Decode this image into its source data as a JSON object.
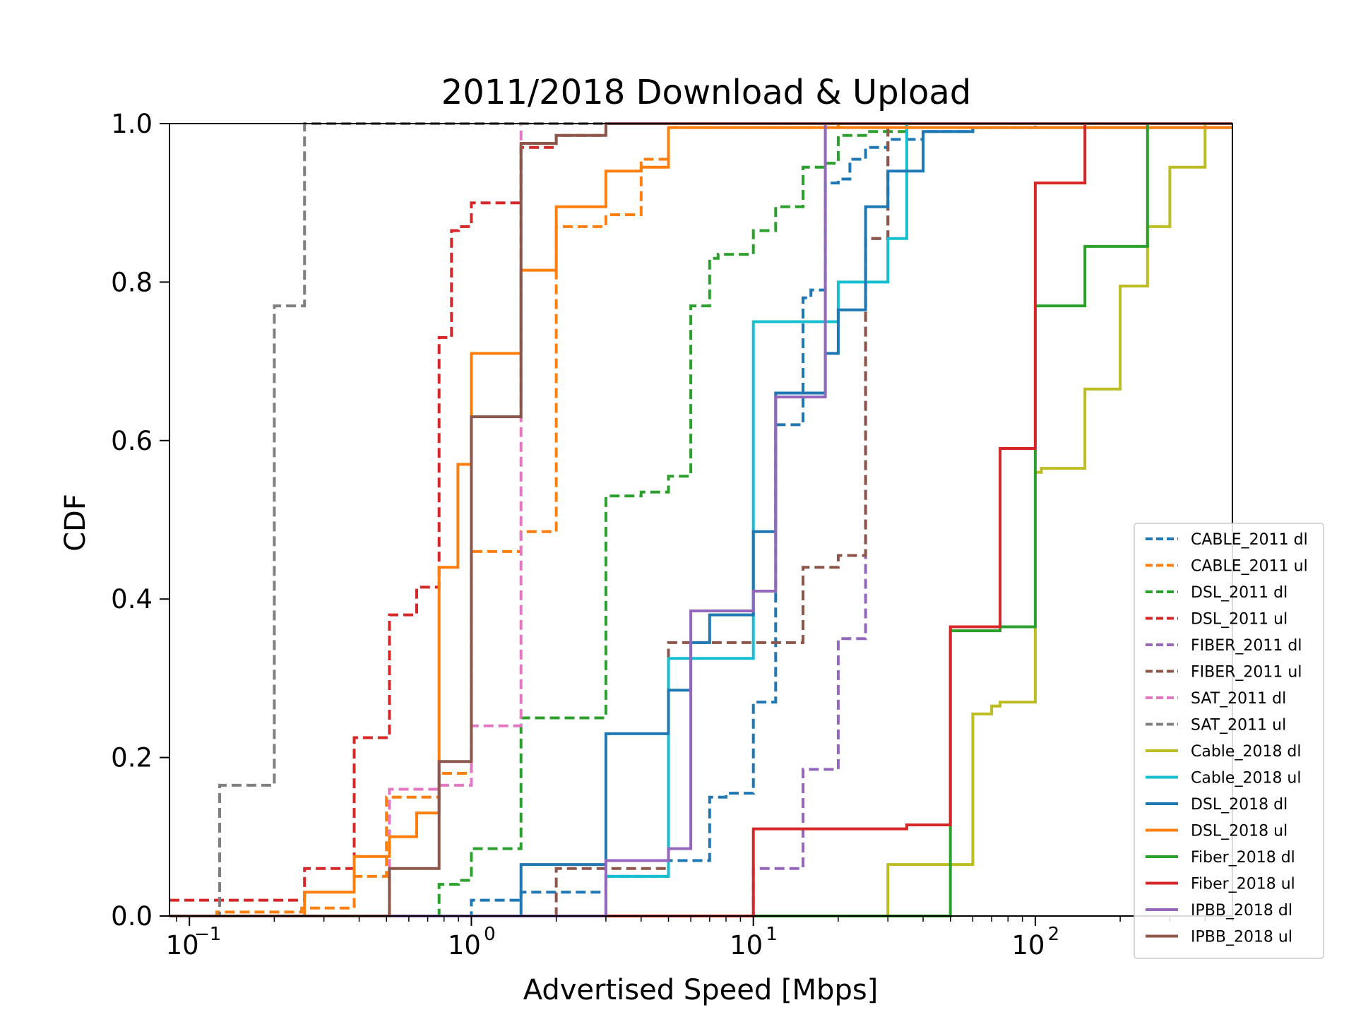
{
  "chart_data": {
    "type": "line",
    "title": "2011/2018 Download & Upload",
    "xlabel": "Advertised Speed [Mbps]",
    "ylabel": "CDF",
    "xscale": "log",
    "xlim": [
      0.085,
      500
    ],
    "ylim": [
      0,
      1
    ],
    "xticks": [
      {
        "value": 0.1,
        "base": "10",
        "exp": "−1"
      },
      {
        "value": 1,
        "base": "10",
        "exp": "0"
      },
      {
        "value": 10,
        "base": "10",
        "exp": "1"
      },
      {
        "value": 100,
        "base": "10",
        "exp": "2"
      }
    ],
    "yticks": [
      "0.0",
      "0.2",
      "0.4",
      "0.6",
      "0.8",
      "1.0"
    ],
    "grid": false,
    "legend_position": "lower-right",
    "series": [
      {
        "name": "CABLE_2011 dl",
        "color": "#1f77b4",
        "style": "dashed",
        "x": [
          0.085,
          1,
          1.5,
          3,
          5,
          7,
          8,
          10,
          12,
          15,
          16,
          18,
          20,
          22,
          25,
          30,
          40,
          60,
          100,
          500
        ],
        "y": [
          0,
          0.02,
          0.03,
          0.05,
          0.07,
          0.15,
          0.155,
          0.27,
          0.62,
          0.78,
          0.79,
          0.925,
          0.93,
          0.955,
          0.97,
          0.98,
          0.99,
          0.995,
          1.0,
          1.0
        ]
      },
      {
        "name": "CABLE_2011 ul",
        "color": "#ff7f0e",
        "style": "dashed",
        "x": [
          0.085,
          0.125,
          0.25,
          0.384,
          0.5,
          0.768,
          1,
          1.5,
          2,
          3,
          4,
          5,
          20,
          500
        ],
        "y": [
          0,
          0.005,
          0.01,
          0.05,
          0.15,
          0.18,
          0.46,
          0.485,
          0.87,
          0.885,
          0.955,
          0.995,
          1.0,
          1.0
        ]
      },
      {
        "name": "DSL_2011 dl",
        "color": "#2ca02c",
        "style": "dashed",
        "x": [
          0.085,
          0.768,
          0.9,
          1,
          1.5,
          3,
          4,
          5,
          6,
          7,
          7.5,
          10,
          12,
          15,
          18,
          20,
          25,
          35,
          500
        ],
        "y": [
          0,
          0.04,
          0.045,
          0.085,
          0.25,
          0.53,
          0.535,
          0.555,
          0.77,
          0.83,
          0.835,
          0.865,
          0.895,
          0.945,
          0.95,
          0.985,
          0.99,
          1.0,
          1.0
        ]
      },
      {
        "name": "DSL_2011 ul",
        "color": "#d62728",
        "style": "dashed",
        "x": [
          0.085,
          0.128,
          0.256,
          0.384,
          0.512,
          0.64,
          0.768,
          0.85,
          0.9,
          1,
          1.5,
          2,
          3,
          500
        ],
        "y": [
          0.02,
          0.02,
          0.06,
          0.225,
          0.38,
          0.415,
          0.73,
          0.865,
          0.87,
          0.9,
          0.97,
          0.985,
          1.0,
          1.0
        ]
      },
      {
        "name": "FIBER_2011 dl",
        "color": "#9467bd",
        "style": "dashed",
        "x": [
          0.085,
          3,
          10,
          15,
          20,
          25,
          30,
          500
        ],
        "y": [
          0,
          0.0,
          0.06,
          0.185,
          0.35,
          0.855,
          1.0,
          1.0
        ]
      },
      {
        "name": "FIBER_2011 ul",
        "color": "#8c564b",
        "style": "dashed",
        "x": [
          0.085,
          1.5,
          2,
          5,
          15,
          20,
          25,
          30,
          500
        ],
        "y": [
          0,
          0.0,
          0.06,
          0.345,
          0.44,
          0.455,
          0.855,
          1.0,
          1.0
        ]
      },
      {
        "name": "SAT_2011 dl",
        "color": "#e377c2",
        "style": "dashed",
        "x": [
          0.085,
          0.512,
          0.768,
          1,
          1.5,
          500
        ],
        "y": [
          0,
          0.16,
          0.165,
          0.24,
          1.0,
          1.0
        ]
      },
      {
        "name": "SAT_2011 ul",
        "color": "#7f7f7f",
        "style": "dashed",
        "x": [
          0.085,
          0.128,
          0.2,
          0.256,
          500
        ],
        "y": [
          0,
          0.165,
          0.77,
          1.0,
          1.0
        ]
      },
      {
        "name": "Cable_2018 dl",
        "color": "#bcbd22",
        "style": "solid",
        "x": [
          0.085,
          30,
          60,
          70,
          75,
          100,
          105,
          150,
          200,
          250,
          300,
          400,
          500
        ],
        "y": [
          0,
          0.065,
          0.255,
          0.265,
          0.27,
          0.56,
          0.565,
          0.665,
          0.795,
          0.87,
          0.945,
          1.0,
          1.0
        ]
      },
      {
        "name": "Cable_2018 ul",
        "color": "#17becf",
        "style": "solid",
        "x": [
          0.085,
          3,
          5,
          10,
          20,
          30,
          35,
          500
        ],
        "y": [
          0,
          0.05,
          0.325,
          0.75,
          0.8,
          0.855,
          1.0,
          1.0
        ]
      },
      {
        "name": "DSL_2018 dl",
        "color": "#1f77b4",
        "style": "solid",
        "x": [
          0.085,
          1.5,
          3,
          5,
          6,
          7,
          10,
          12,
          18,
          20,
          25,
          30,
          40,
          60,
          500
        ],
        "y": [
          0,
          0.065,
          0.23,
          0.285,
          0.345,
          0.38,
          0.485,
          0.66,
          0.71,
          0.765,
          0.895,
          0.94,
          0.99,
          0.995,
          0.995
        ]
      },
      {
        "name": "DSL_2018 ul",
        "color": "#ff7f0e",
        "style": "solid",
        "x": [
          0.085,
          0.256,
          0.384,
          0.512,
          0.64,
          0.768,
          0.896,
          1,
          1.5,
          2,
          3,
          4,
          5,
          500
        ],
        "y": [
          0,
          0.03,
          0.075,
          0.1,
          0.13,
          0.44,
          0.57,
          0.71,
          0.815,
          0.895,
          0.94,
          0.945,
          0.995,
          0.995
        ]
      },
      {
        "name": "Fiber_2018 dl",
        "color": "#2ca02c",
        "style": "solid",
        "x": [
          0.085,
          50,
          75,
          100,
          150,
          250,
          500
        ],
        "y": [
          0,
          0.36,
          0.365,
          0.77,
          0.845,
          1.0,
          1.0
        ]
      },
      {
        "name": "Fiber_2018 ul",
        "color": "#d62728",
        "style": "solid",
        "x": [
          0.085,
          10,
          35,
          50,
          75,
          100,
          150,
          500
        ],
        "y": [
          0,
          0.11,
          0.115,
          0.365,
          0.59,
          0.925,
          1.0,
          1.0
        ]
      },
      {
        "name": "IPBB_2018 dl",
        "color": "#9467bd",
        "style": "solid",
        "x": [
          0.085,
          3,
          5,
          6,
          10,
          12,
          18,
          500
        ],
        "y": [
          0,
          0.07,
          0.085,
          0.385,
          0.41,
          0.655,
          1.0,
          1.0
        ]
      },
      {
        "name": "IPBB_2018 ul",
        "color": "#8c564b",
        "style": "solid",
        "x": [
          0.085,
          0.512,
          0.768,
          1,
          1.5,
          2,
          3,
          500
        ],
        "y": [
          0,
          0.06,
          0.195,
          0.63,
          0.975,
          0.985,
          1.0,
          1.0
        ]
      }
    ]
  }
}
